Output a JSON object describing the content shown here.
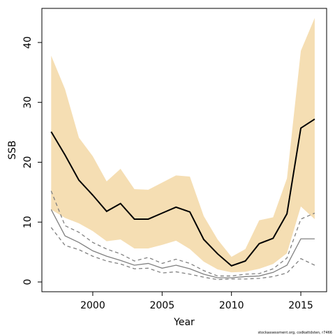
{
  "chart_data": {
    "type": "line",
    "x_label": "Year",
    "y_label": "SSB",
    "footnote": "stockassessment.org, codkattdsten, r7466",
    "x": [
      1997,
      1998,
      1999,
      2000,
      2001,
      2002,
      2003,
      2004,
      2005,
      2006,
      2007,
      2008,
      2009,
      2010,
      2011,
      2012,
      2013,
      2014,
      2015,
      2016
    ],
    "band": {
      "color": "#f5deb3",
      "upper": [
        37.8,
        32.2,
        24.1,
        21.0,
        16.8,
        18.9,
        15.5,
        15.4,
        16.6,
        17.8,
        17.6,
        11.0,
        7.1,
        4.2,
        5.5,
        10.3,
        10.8,
        17.3,
        38.6,
        44.1
      ],
      "lower": [
        12.1,
        10.7,
        9.8,
        8.5,
        6.8,
        7.1,
        5.6,
        5.6,
        6.2,
        6.9,
        5.5,
        3.4,
        2.1,
        1.6,
        1.7,
        2.2,
        3.0,
        4.8,
        12.6,
        10.5
      ]
    },
    "series": [
      {
        "color": "#808080",
        "dash": "5,4",
        "values": [
          15.2,
          9.4,
          8.3,
          6.6,
          5.5,
          4.7,
          3.5,
          4.1,
          3.1,
          3.8,
          3.1,
          1.9,
          1.0,
          1.0,
          1.3,
          1.4,
          2.2,
          4.0,
          10.5,
          11.5
        ]
      },
      {
        "color": "#808080",
        "dash": "5,4",
        "values": [
          9.1,
          6.1,
          5.4,
          4.3,
          3.5,
          3.0,
          2.2,
          2.3,
          1.5,
          1.7,
          1.3,
          0.8,
          0.4,
          0.5,
          0.5,
          0.6,
          0.9,
          1.5,
          3.9,
          2.8
        ]
      },
      {
        "color": "#808080",
        "dash": "none",
        "values": [
          12.1,
          7.7,
          6.6,
          5.2,
          4.3,
          3.6,
          2.8,
          3.1,
          2.3,
          2.8,
          2.2,
          1.3,
          0.7,
          0.7,
          0.9,
          1.0,
          1.6,
          2.8,
          7.2,
          7.2
        ]
      },
      {
        "color": "#000000",
        "dash": "none",
        "values": [
          25.1,
          21.2,
          17.0,
          14.5,
          11.8,
          13.1,
          10.5,
          10.5,
          11.5,
          12.5,
          11.7,
          7.1,
          4.7,
          2.7,
          3.5,
          6.4,
          7.3,
          11.4,
          25.7,
          27.2
        ]
      }
    ],
    "xlim": [
      1996.33,
      2016.86
    ],
    "ylim": [
      -1.63,
      45.7
    ],
    "xticks": [
      2000,
      2005,
      2010,
      2015
    ],
    "yticks": [
      0,
      10,
      20,
      30,
      40
    ]
  }
}
